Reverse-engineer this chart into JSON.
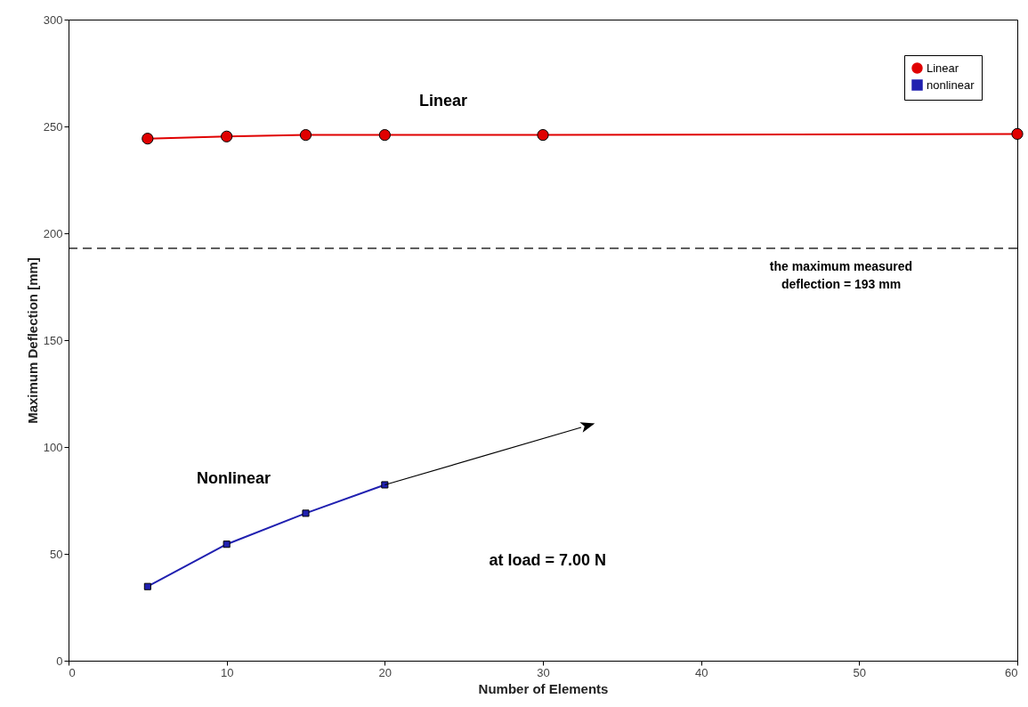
{
  "chart_data": {
    "type": "line",
    "xlabel": "Number of Elements",
    "ylabel": "Maximum Deflection [mm]",
    "x": [
      5,
      10,
      15,
      20,
      30,
      60
    ],
    "series": [
      {
        "name": "Linear",
        "color": "#e00000",
        "marker": "circle",
        "values": [
          244.3,
          245.3,
          246,
          246,
          246,
          246.5
        ]
      },
      {
        "name": "nonlinear",
        "color": "#2020b0",
        "marker": "square",
        "x": [
          5,
          10,
          15,
          20
        ],
        "values": [
          34.7,
          54.5,
          69,
          82.3
        ]
      }
    ],
    "xlim": [
      0,
      60
    ],
    "xticks": [
      0,
      10,
      20,
      30,
      40,
      50,
      60
    ],
    "ylim": [
      0,
      300
    ],
    "yticks": [
      0,
      50,
      100,
      150,
      200,
      250,
      300
    ],
    "grid": false,
    "legend": "top right",
    "ref_lines": [
      {
        "axis": "y",
        "value": 193,
        "label": "the maximum measured deflection = 193 mm",
        "line_style": "dashed",
        "color": "#000000"
      }
    ],
    "annotations": [
      "Linear",
      "Nonlinear",
      "at load = 7.00 N"
    ]
  }
}
